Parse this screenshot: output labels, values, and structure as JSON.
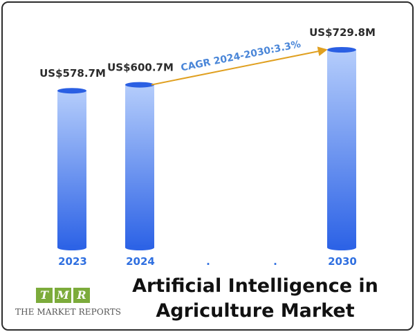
{
  "chart_data": {
    "type": "bar",
    "title": "Artificial Intelligence in Agriculture Market",
    "title_lines": [
      "Artificial Intelligence in",
      "Agriculture Market"
    ],
    "categories": [
      "2023",
      "2024",
      ".",
      ".",
      "2030"
    ],
    "values": [
      578.7,
      600.7,
      null,
      null,
      729.8
    ],
    "value_labels": [
      "US$578.7M",
      "US$600.7M",
      "",
      "",
      "US$729.8M"
    ],
    "annotation": "CAGR 2024-2030:3.3%",
    "xlabel": "",
    "ylabel": "",
    "grid": false,
    "legend": "none"
  },
  "brand": {
    "letters": [
      "T",
      "M",
      "R"
    ],
    "name": "THE MARKET REPORTS"
  },
  "colors": {
    "bar_top": "#b5cdfb",
    "bar_bottom": "#2d63e6",
    "bar_cap": "#2a5fe3",
    "tick": "#2f6fe0",
    "arrow": "#e0a020",
    "cagr": "#4a86d8",
    "logo_green": "#7cab3b"
  }
}
